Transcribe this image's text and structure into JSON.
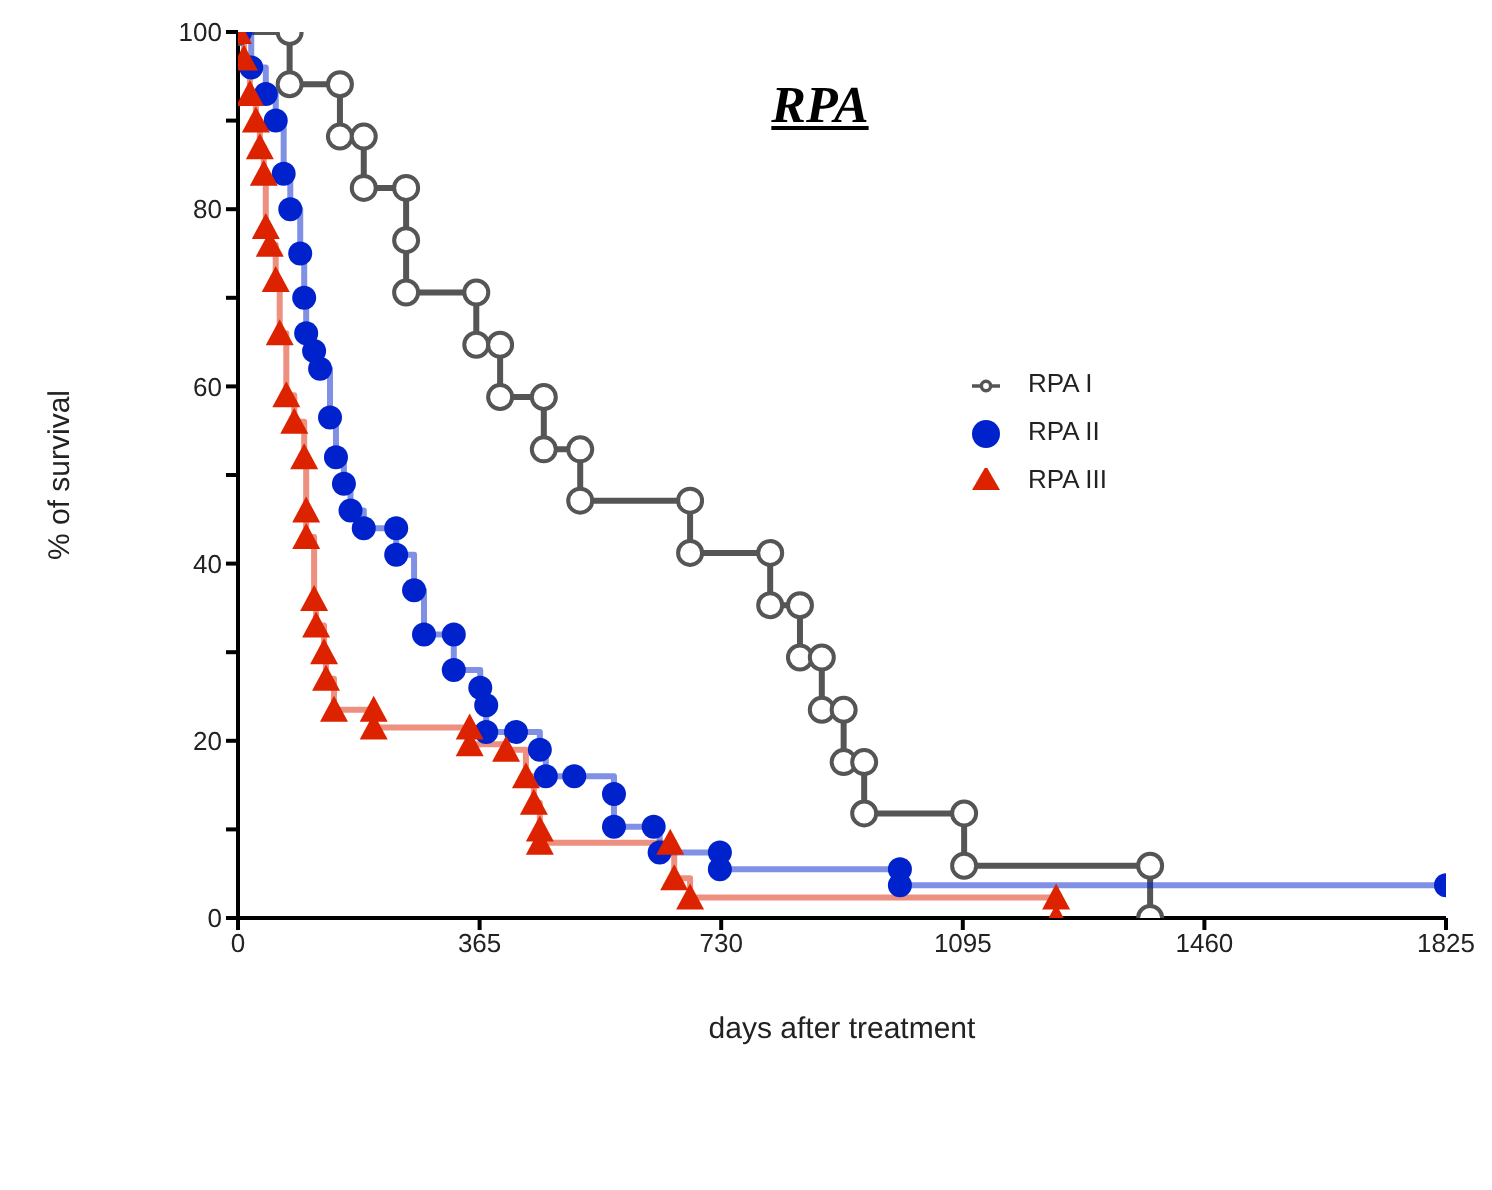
{
  "chart_data": {
    "type": "step",
    "title": "RPA",
    "xlabel": "days   after   treatment",
    "ylabel": "%   of   survival",
    "xlim": [
      0,
      1825
    ],
    "xticks": [
      0,
      365,
      730,
      1095,
      1460,
      1825
    ],
    "ylim": [
      0,
      100
    ],
    "yticks": [
      0,
      {
        "value": 10,
        "label": null
      },
      20,
      {
        "value": 30,
        "label": null
      },
      40,
      {
        "value": 50,
        "label": null
      },
      60,
      {
        "value": 70,
        "label": null
      },
      80,
      {
        "value": 90,
        "label": null
      },
      100
    ],
    "grid": false,
    "legend": "right",
    "series": [
      {
        "name": "RPA I",
        "color": "#555555",
        "marker": "circle",
        "x": [
          0,
          78,
          78,
          154,
          154,
          190,
          190,
          254,
          254,
          254,
          360,
          360,
          396,
          396,
          462,
          462,
          517,
          517,
          683,
          683,
          804,
          804,
          849,
          849,
          882,
          882,
          915,
          915,
          946,
          946,
          1097,
          1097,
          1378,
          1378
        ],
        "values": [
          100,
          100,
          94.1,
          94.1,
          88.2,
          88.2,
          82.4,
          82.4,
          76.5,
          70.6,
          70.6,
          64.7,
          64.7,
          58.8,
          58.8,
          52.9,
          52.9,
          47.1,
          47.1,
          41.2,
          41.2,
          35.3,
          35.3,
          29.4,
          29.4,
          23.5,
          23.5,
          17.6,
          17.6,
          11.8,
          11.8,
          5.9,
          5.9,
          0
        ]
      },
      {
        "name": "RPA II",
        "color": "#0022cc",
        "marker": "circle",
        "x": [
          0,
          3,
          20,
          42,
          57,
          69,
          79,
          94,
          100,
          103,
          115,
          124,
          139,
          148,
          160,
          170,
          190,
          239,
          239,
          266,
          281,
          326,
          326,
          366,
          375,
          375,
          420,
          456,
          465,
          508,
          568,
          568,
          628,
          637,
          728,
          728,
          1000,
          1000,
          1825
        ],
        "values": [
          100,
          100,
          96,
          93,
          90,
          84,
          80,
          75,
          70,
          66,
          64,
          62,
          56.5,
          52,
          49,
          46,
          44,
          44,
          41,
          37,
          32,
          32,
          28,
          26,
          24,
          21,
          21,
          19,
          16,
          16,
          14,
          10.3,
          10.3,
          7.4,
          7.4,
          5.5,
          5.5,
          3.7,
          3.7
        ]
      },
      {
        "name": "RPA III",
        "color": "#dd2200",
        "marker": "triangle",
        "x": [
          0,
          9,
          18,
          27,
          33,
          39,
          42,
          48,
          57,
          63,
          73,
          85,
          100,
          103,
          103,
          115,
          118,
          130,
          133,
          145,
          205,
          205,
          350,
          350,
          405,
          435,
          447,
          456,
          456,
          653,
          659,
          683,
          1236,
          1236
        ],
        "values": [
          100,
          97,
          93,
          90,
          87,
          84,
          78,
          76,
          72,
          66,
          59,
          56,
          52,
          46,
          43,
          36,
          33,
          30,
          27,
          23.5,
          23.5,
          21.5,
          21.5,
          19.6,
          19,
          16,
          13,
          10,
          8.5,
          8.5,
          4.5,
          2.3,
          2.3,
          0
        ]
      }
    ]
  }
}
